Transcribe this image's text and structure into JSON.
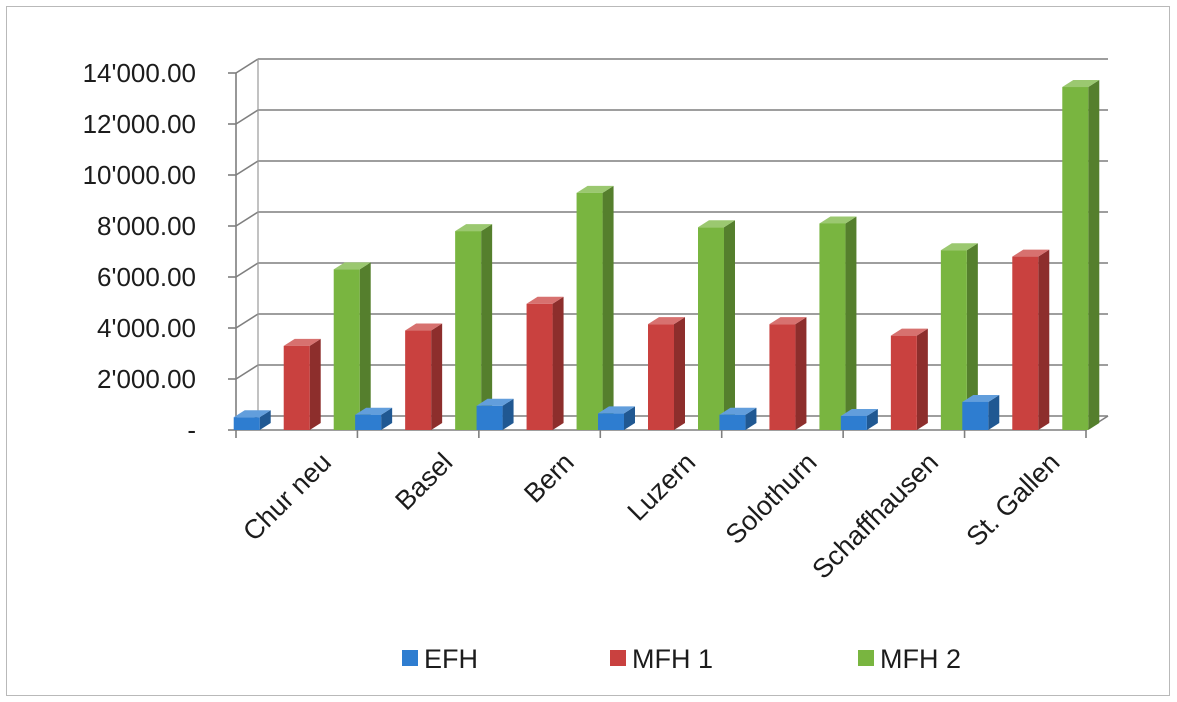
{
  "chart_data": {
    "type": "bar",
    "title": "",
    "xlabel": "",
    "ylabel": "",
    "ylim": [
      0,
      14000
    ],
    "yticks": [
      0,
      2000,
      4000,
      6000,
      8000,
      10000,
      12000,
      14000
    ],
    "ytick_labels": [
      "-",
      "2'000.00",
      "4'000.00",
      "6'000.00",
      "8'000.00",
      "10'000.00",
      "12'000.00",
      "14'000.00"
    ],
    "categories": [
      "Chur neu",
      "Basel",
      "Bern",
      "Luzern",
      "Solothurn",
      "Schaffhausen",
      "St. Gallen"
    ],
    "series": [
      {
        "name": "EFH",
        "color": "#2e7dd0",
        "values": [
          500,
          600,
          950,
          650,
          600,
          550,
          1100
        ]
      },
      {
        "name": "MFH 1",
        "color": "#c9413f",
        "values": [
          3300,
          3900,
          4950,
          4150,
          4150,
          3700,
          6800
        ]
      },
      {
        "name": "MFH 2",
        "color": "#79b540",
        "values": [
          6300,
          7800,
          9300,
          7950,
          8100,
          7050,
          13450
        ]
      }
    ],
    "grid": true,
    "style": "3d-clustered-column",
    "legend_position": "bottom"
  }
}
